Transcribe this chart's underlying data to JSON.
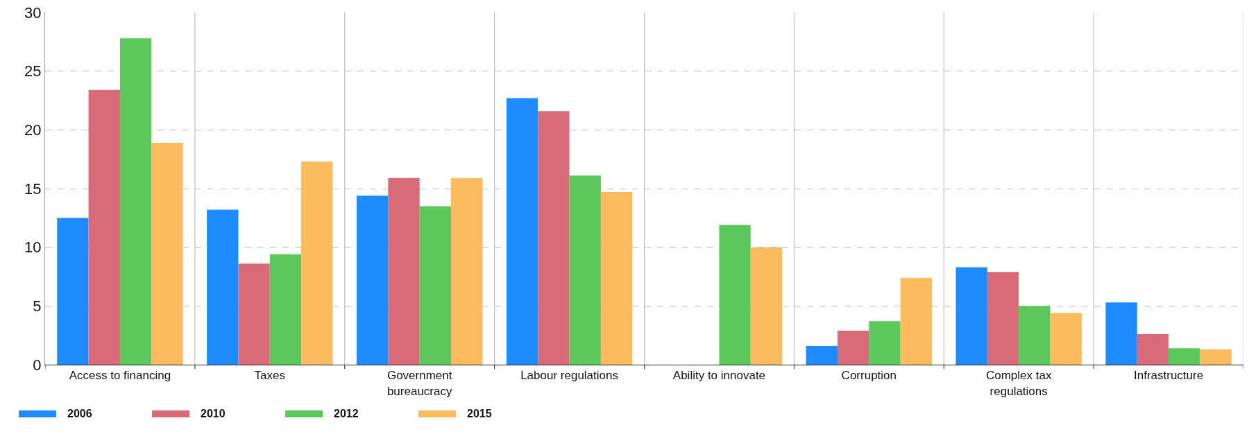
{
  "chart_data": {
    "type": "bar",
    "categories": [
      "Access to financing",
      "Taxes",
      "Government bureaucracy",
      "Labour regulations",
      "Ability to innovate",
      "Corruption",
      "Complex tax regulations",
      "Infrastructure"
    ],
    "series": [
      {
        "name": "2006",
        "color": "#1e8cff",
        "values": [
          12.5,
          13.2,
          14.4,
          22.7,
          null,
          1.6,
          8.3,
          5.3
        ]
      },
      {
        "name": "2010",
        "color": "#d96b78",
        "values": [
          23.4,
          8.6,
          15.9,
          21.6,
          null,
          2.9,
          7.9,
          2.6
        ]
      },
      {
        "name": "2012",
        "color": "#5cc85c",
        "values": [
          27.8,
          9.4,
          13.5,
          16.1,
          11.9,
          3.7,
          5.0,
          1.4
        ]
      },
      {
        "name": "2015",
        "color": "#fdbb5f",
        "values": [
          18.9,
          17.3,
          15.9,
          14.7,
          10.0,
          7.4,
          4.4,
          1.3
        ]
      }
    ],
    "ylim": [
      0,
      30
    ],
    "yticks": [
      0,
      5,
      10,
      15,
      20,
      25,
      30
    ],
    "grid": true,
    "legend": "bottom left"
  }
}
